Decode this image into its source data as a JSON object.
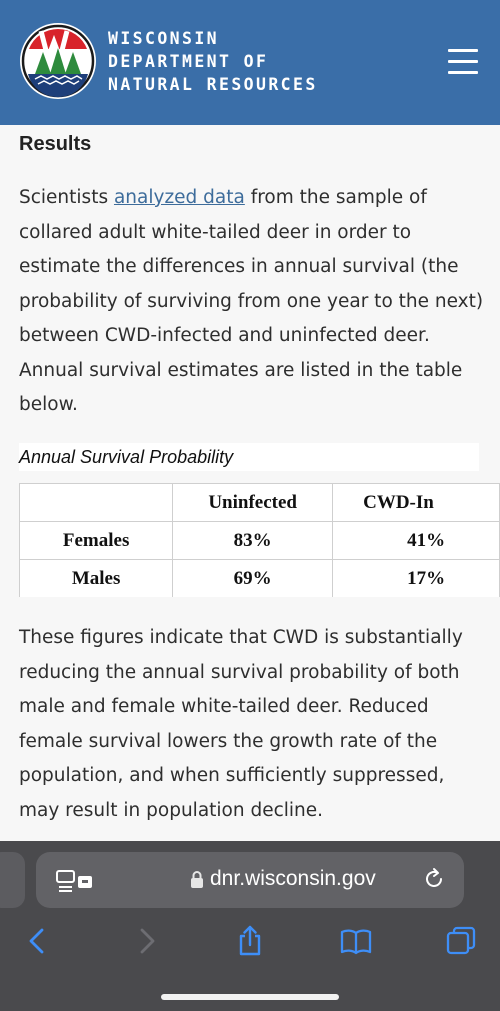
{
  "header": {
    "brand_lines": [
      "WISCONSIN",
      "DEPARTMENT OF",
      "NATURAL RESOURCES"
    ],
    "logo_letter": "W",
    "logo_colors": {
      "red": "#d8232a",
      "green": "#2e8b3d",
      "blue": "#1e3f7a"
    },
    "background": "#3a6ea8"
  },
  "article": {
    "heading": "Results",
    "para1_before_link": "Scientists ",
    "para1_link": "analyzed data",
    "para1_after_link": " from the sample of collared adult white-tailed deer in order to estimate the differences in annual survival (the probability of surviving from one year to the next) between CWD-infected and uninfected deer. Annual survival estimates are listed in the table below.",
    "table_caption": "Annual Survival Probability",
    "table": {
      "headers": [
        "",
        "Uninfected",
        "CWD-In"
      ],
      "rows": [
        [
          "Females",
          "83%",
          "41%"
        ],
        [
          "Males",
          "69%",
          "17%"
        ]
      ]
    },
    "para2": "These figures indicate that CWD is substantially reducing the annual survival probability of both male and female white-tailed deer. Reduced female survival lowers the growth rate of the population, and when sufficiently suppressed, may result in population decline."
  },
  "browser": {
    "url": "dnr.wisconsin.gov",
    "icons": {
      "reader": "reader-mode-icon",
      "lock": "lock-icon",
      "reload": "reload-icon",
      "back": "back-chevron-icon",
      "forward": "forward-chevron-icon",
      "share": "share-icon",
      "bookmarks": "book-icon",
      "tabs": "tabs-icon"
    },
    "accent": "#3e8ef7"
  }
}
